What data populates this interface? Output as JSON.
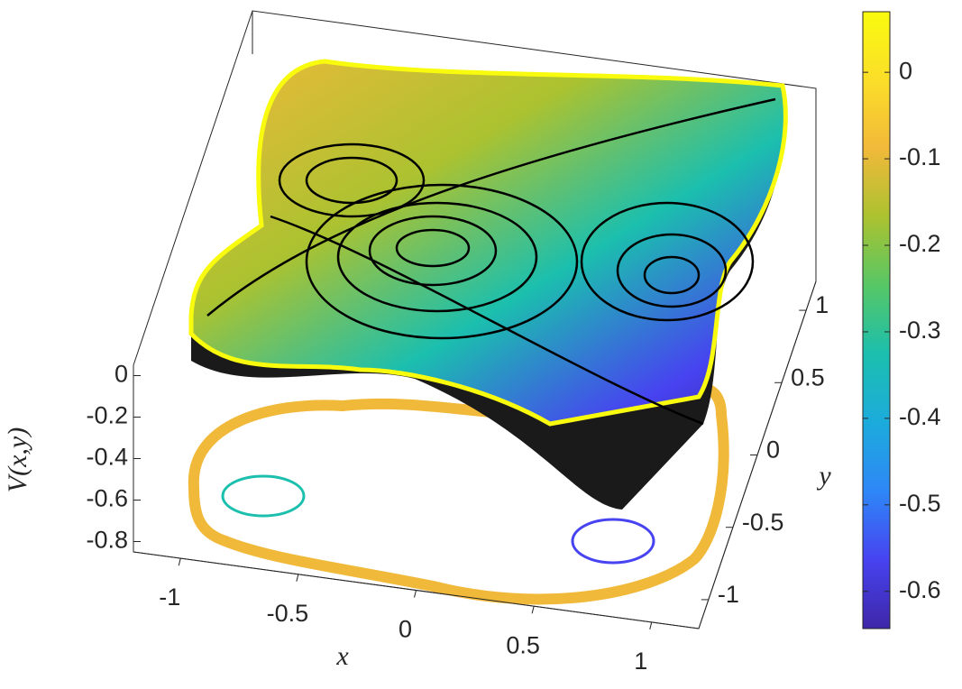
{
  "chart_data": {
    "type": "surface",
    "x_label": "x",
    "y_label": "y",
    "z_label": "V(x,y)",
    "xlim": [
      -1.2,
      1.2
    ],
    "xticks": [
      -1,
      -0.5,
      0,
      0.5,
      1
    ],
    "ylim": [
      -1.2,
      1.2
    ],
    "yticks": [
      -1,
      -0.5,
      0,
      0.5,
      1
    ],
    "zlim": [
      -0.85,
      0.05
    ],
    "zticks": [
      0,
      -0.2,
      -0.4,
      -0.6,
      -0.8
    ],
    "colorbar": {
      "clim": [
        -0.643,
        0.07
      ],
      "ticks": [
        0,
        -0.1,
        -0.2,
        -0.3,
        -0.4,
        -0.5,
        -0.6
      ],
      "colormap": [
        "#3e26a8",
        "#4743f0",
        "#2e87f7",
        "#1cabdc",
        "#1bbfae",
        "#56c766",
        "#abc230",
        "#f1b93a",
        "#fbde29",
        "#f9fb0e"
      ]
    }
  }
}
